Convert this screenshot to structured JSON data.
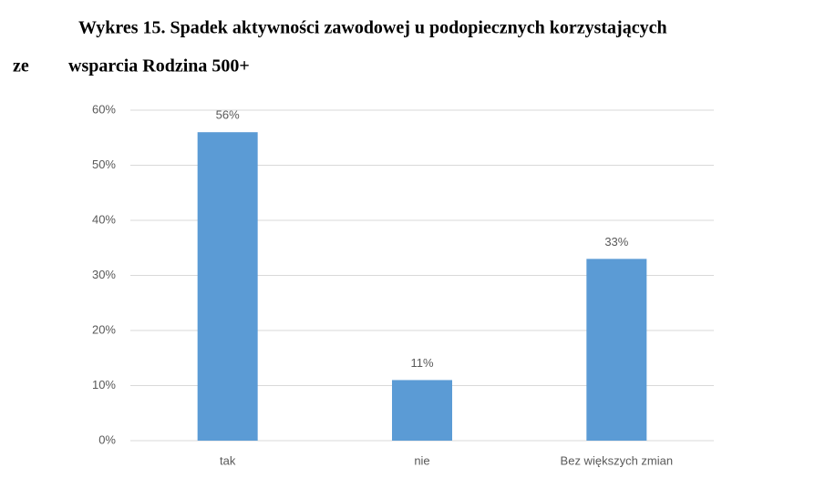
{
  "chart_data": {
    "type": "bar",
    "title": [
      "Wykres 15. Spadek aktywności zawodowej u podopiecznych korzystających",
      "ze",
      "wsparcia Rodzina 500+"
    ],
    "categories": [
      "tak",
      "nie",
      "Bez większych zmian"
    ],
    "values": [
      56,
      11,
      33
    ],
    "value_labels": [
      "56%",
      "11%",
      "33%"
    ],
    "color": "#5b9bd5",
    "ylim": [
      0,
      60
    ],
    "yticks": [
      {
        "value": 0,
        "label": "0%"
      },
      {
        "value": 10,
        "label": "10%"
      },
      {
        "value": 20,
        "label": "20%"
      },
      {
        "value": 30,
        "label": "30%"
      },
      {
        "value": 40,
        "label": "40%"
      },
      {
        "value": 50,
        "label": "50%"
      },
      {
        "value": 60,
        "label": "60%"
      }
    ],
    "grid": true
  }
}
